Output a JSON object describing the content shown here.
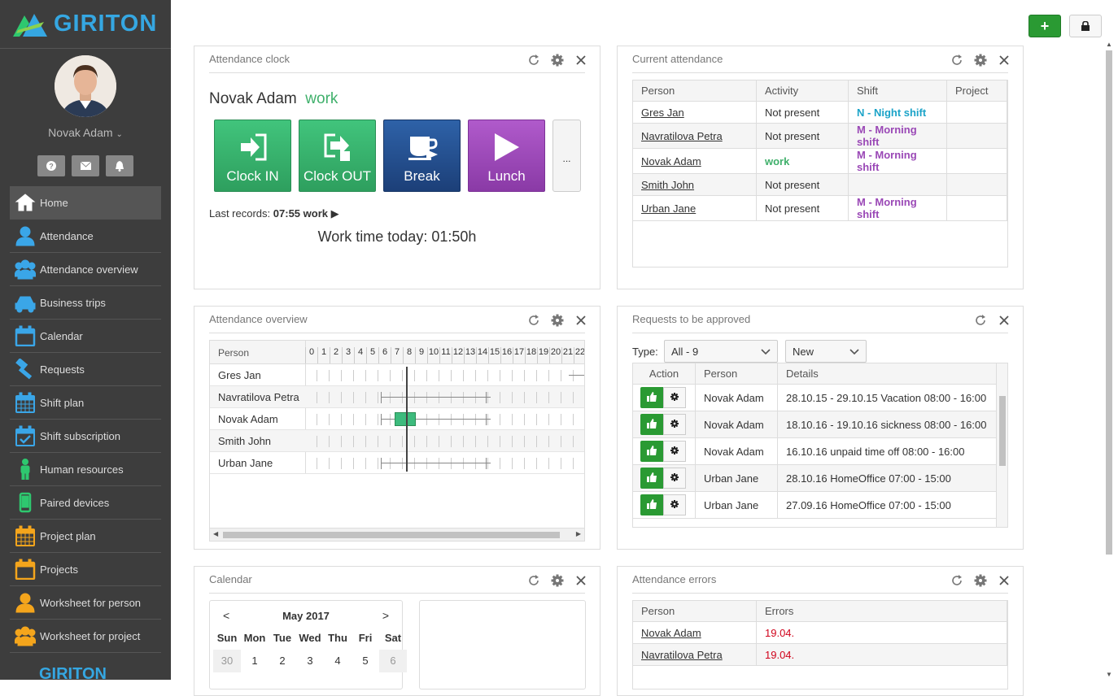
{
  "brand": {
    "name": "GIRITON",
    "color": "#35a7e2"
  },
  "user": {
    "name": "Novak Adam"
  },
  "sidebar_icons": [
    "help-icon",
    "mail-icon",
    "bell-icon"
  ],
  "nav": [
    {
      "label": "Home",
      "icon": "home-icon",
      "color": "#fff"
    },
    {
      "label": "Attendance",
      "icon": "person-icon",
      "color": "#3aa6e8"
    },
    {
      "label": "Attendance overview",
      "icon": "group-icon",
      "color": "#3aa6e8"
    },
    {
      "label": "Business trips",
      "icon": "car-icon",
      "color": "#3aa6e8"
    },
    {
      "label": "Calendar",
      "icon": "calendar-icon",
      "color": "#3aa6e8"
    },
    {
      "label": "Requests",
      "icon": "hammer-icon",
      "color": "#3aa6e8"
    },
    {
      "label": "Shift plan",
      "icon": "calendar-grid-icon",
      "color": "#3aa6e8"
    },
    {
      "label": "Shift subscription",
      "icon": "calendar-check-icon",
      "color": "#3aa6e8"
    },
    {
      "label": "Human resources",
      "icon": "person-standing-icon",
      "color": "#2ec86f"
    },
    {
      "label": "Paired devices",
      "icon": "phone-icon",
      "color": "#2ec86f"
    },
    {
      "label": "Project plan",
      "icon": "calendar-grid-icon",
      "color": "#f4a51c"
    },
    {
      "label": "Projects",
      "icon": "calendar-icon",
      "color": "#f4a51c"
    },
    {
      "label": "Worksheet for person",
      "icon": "person-icon",
      "color": "#f4a51c"
    },
    {
      "label": "Worksheet for project",
      "icon": "group-icon",
      "color": "#f4a51c"
    }
  ],
  "top_buttons": {
    "add": "+"
  },
  "clock": {
    "title": "Attendance clock",
    "person": "Novak Adam",
    "status": "work",
    "buttons": [
      {
        "label": "Clock IN",
        "icon": "clock-in-icon",
        "color": "#36b670"
      },
      {
        "label": "Clock OUT",
        "icon": "clock-out-icon",
        "color": "#36b670"
      },
      {
        "label": "Break",
        "icon": "coffee-icon",
        "color": "#24508f"
      },
      {
        "label": "Lunch",
        "icon": "play-icon",
        "color": "#9a48b6"
      }
    ],
    "more": "...",
    "last_records_label": "Last records:",
    "last_records_value": "07:55 work",
    "work_time": "Work time today: 01:50h"
  },
  "current": {
    "title": "Current attendance",
    "columns": [
      "Person",
      "Activity",
      "Shift",
      "Project"
    ],
    "rows": [
      {
        "person": "Gres Jan",
        "activity": "Not present",
        "shift": "N - Night shift",
        "shift_color": "#1ba3c8",
        "project": ""
      },
      {
        "person": "Navratilova Petra",
        "activity": "Not present",
        "shift": "M - Morning shift",
        "shift_color": "#9a48b6",
        "project": ""
      },
      {
        "person": "Novak Adam",
        "activity": "work",
        "shift": "M - Morning shift",
        "shift_color": "#9a48b6",
        "project": ""
      },
      {
        "person": "Smith John",
        "activity": "Not present",
        "shift": "",
        "shift_color": "#9a48b6",
        "project": ""
      },
      {
        "person": "Urban Jane",
        "activity": "Not present",
        "shift": "M - Morning shift",
        "shift_color": "#9a48b6",
        "project": ""
      }
    ]
  },
  "overview": {
    "title": "Attendance overview",
    "column": "Person",
    "hours": [
      "0",
      "1",
      "2",
      "3",
      "4",
      "5",
      "6",
      "7",
      "8",
      "9",
      "10",
      "11",
      "12",
      "13",
      "14",
      "15",
      "16",
      "17",
      "18",
      "19",
      "20",
      "21",
      "22"
    ],
    "rows": [
      "Gres Jan",
      "Navratilova Petra",
      "Novak Adam",
      "Smith John",
      "Urban Jane"
    ]
  },
  "requests": {
    "title": "Requests to be approved",
    "type_label": "Type:",
    "type_value": "All - 9",
    "status_value": "New",
    "columns": [
      "Action",
      "Person",
      "Details"
    ],
    "rows": [
      {
        "person": "Novak Adam",
        "details": "28.10.15 - 29.10.15 Vacation 08:00 - 16:00"
      },
      {
        "person": "Novak Adam",
        "details": "18.10.16 - 19.10.16 sickness 08:00 - 16:00"
      },
      {
        "person": "Novak Adam",
        "details": "16.10.16 unpaid time off 08:00 - 16:00"
      },
      {
        "person": "Urban Jane",
        "details": "28.10.16 HomeOffice 07:00 - 15:00"
      },
      {
        "person": "Urban Jane",
        "details": "27.09.16 HomeOffice 07:00 - 15:00"
      }
    ]
  },
  "calendar": {
    "title": "Calendar",
    "prev": "<",
    "next": ">",
    "month": "May 2017",
    "days": [
      "Sun",
      "Mon",
      "Tue",
      "Wed",
      "Thu",
      "Fri",
      "Sat"
    ],
    "first_row": [
      "30",
      "1",
      "2",
      "3",
      "4",
      "5",
      "6"
    ]
  },
  "errors": {
    "title": "Attendance errors",
    "columns": [
      "Person",
      "Errors"
    ],
    "rows": [
      {
        "person": "Novak Adam",
        "error": "19.04."
      },
      {
        "person": "Navratilova Petra",
        "error": "19.04."
      }
    ]
  }
}
